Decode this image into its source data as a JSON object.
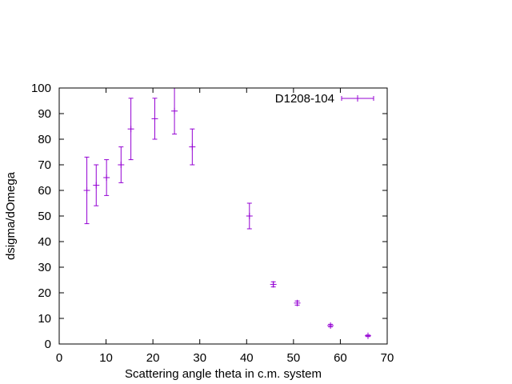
{
  "chart_data": {
    "type": "scatter",
    "title": "",
    "xlabel": "Scattering angle theta in c.m. system",
    "ylabel": "dsigma/dOmega",
    "xlim": [
      0,
      70
    ],
    "ylim": [
      0,
      100
    ],
    "xticks": [
      0,
      10,
      20,
      30,
      40,
      50,
      60,
      70
    ],
    "yticks": [
      0,
      10,
      20,
      30,
      40,
      50,
      60,
      70,
      80,
      90,
      100
    ],
    "grid": false,
    "legend_position": "top-right",
    "series": [
      {
        "name": "D1208-104",
        "color": "#9400d3",
        "style": "points with error bars",
        "points": [
          {
            "x": 5.9,
            "y": 60,
            "err": 13
          },
          {
            "x": 7.9,
            "y": 62,
            "err": 8
          },
          {
            "x": 10.1,
            "y": 65,
            "err": 7
          },
          {
            "x": 13.2,
            "y": 70,
            "err": 7
          },
          {
            "x": 15.3,
            "y": 84,
            "err": 12
          },
          {
            "x": 20.4,
            "y": 88,
            "err": 8
          },
          {
            "x": 24.6,
            "y": 91,
            "err": 9
          },
          {
            "x": 28.4,
            "y": 77,
            "err": 7
          },
          {
            "x": 40.6,
            "y": 50,
            "err": 5
          },
          {
            "x": 45.7,
            "y": 23.3,
            "err": 1.0
          },
          {
            "x": 50.8,
            "y": 16,
            "err": 0.8
          },
          {
            "x": 57.9,
            "y": 7.2,
            "err": 0.5
          },
          {
            "x": 65.9,
            "y": 3.2,
            "err": 0.3
          }
        ]
      }
    ]
  }
}
